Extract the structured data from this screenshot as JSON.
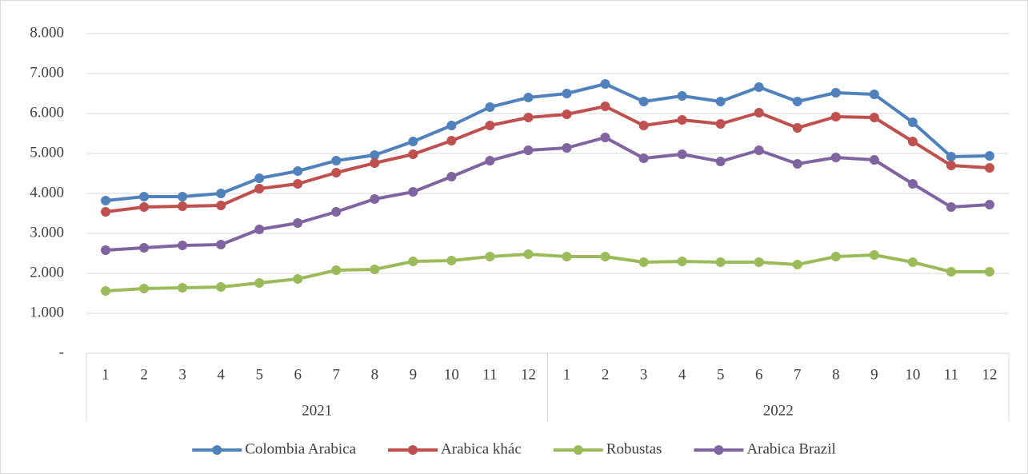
{
  "chart_data": {
    "type": "line",
    "category_groups": [
      {
        "name": "2021",
        "categories": [
          "1",
          "2",
          "3",
          "4",
          "5",
          "6",
          "7",
          "8",
          "9",
          "10",
          "11",
          "12"
        ]
      },
      {
        "name": "2022",
        "categories": [
          "1",
          "2",
          "3",
          "4",
          "5",
          "6",
          "7",
          "8",
          "9",
          "10",
          "11",
          "12"
        ]
      }
    ],
    "series": [
      {
        "name": "Colombia Arabica",
        "color": "#4f81bd",
        "values": [
          3820,
          3920,
          3920,
          4000,
          4380,
          4560,
          4820,
          4960,
          5300,
          5700,
          6160,
          6400,
          6500,
          6740,
          6300,
          6440,
          6300,
          6660,
          6300,
          6520,
          6480,
          5780,
          4920,
          4940
        ]
      },
      {
        "name": "Arabica khác",
        "color": "#c0504d",
        "values": [
          3540,
          3660,
          3680,
          3700,
          4120,
          4240,
          4520,
          4760,
          4980,
          5320,
          5700,
          5900,
          5980,
          6180,
          5700,
          5840,
          5740,
          6020,
          5640,
          5920,
          5900,
          5300,
          4700,
          4640
        ]
      },
      {
        "name": "Robustas",
        "color": "#9bbb59",
        "values": [
          1560,
          1620,
          1640,
          1660,
          1760,
          1860,
          2080,
          2100,
          2300,
          2320,
          2420,
          2480,
          2420,
          2420,
          2280,
          2300,
          2280,
          2280,
          2220,
          2420,
          2460,
          2280,
          2040,
          2040
        ]
      },
      {
        "name": "Arabica Brazil",
        "color": "#8064a2",
        "values": [
          2580,
          2640,
          2700,
          2720,
          3100,
          3260,
          3540,
          3860,
          4040,
          4420,
          4820,
          5080,
          5140,
          5400,
          4880,
          4980,
          4800,
          5080,
          4740,
          4900,
          4840,
          4240,
          3660,
          3720
        ]
      }
    ],
    "ylim": [
      0,
      8000
    ],
    "yticks": [
      {
        "value": 0,
        "label": "-"
      },
      {
        "value": 1000,
        "label": "1.000"
      },
      {
        "value": 2000,
        "label": "2.000"
      },
      {
        "value": 3000,
        "label": "3.000"
      },
      {
        "value": 4000,
        "label": "4.000"
      },
      {
        "value": 5000,
        "label": "5.000"
      },
      {
        "value": 6000,
        "label": "6.000"
      },
      {
        "value": 7000,
        "label": "7.000"
      },
      {
        "value": 8000,
        "label": "8.000"
      }
    ],
    "grid": true,
    "legend": "bottom"
  }
}
